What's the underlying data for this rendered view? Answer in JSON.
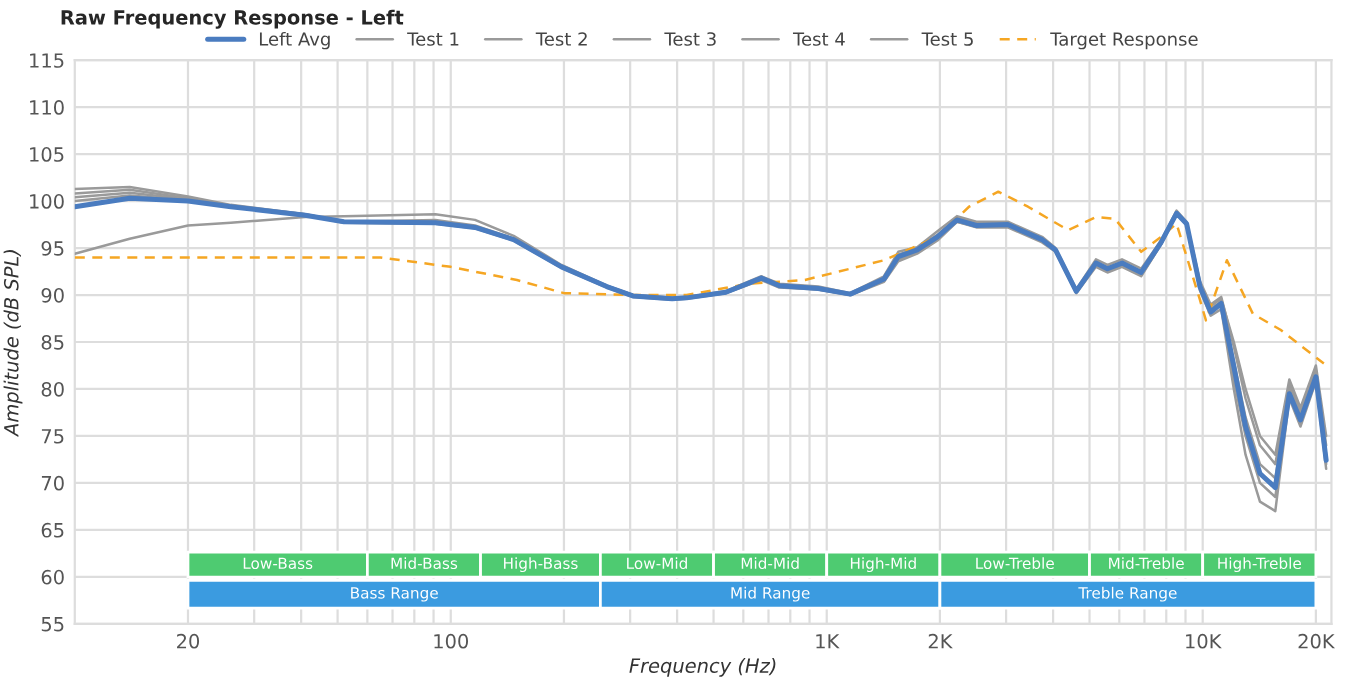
{
  "chart_data": {
    "type": "line",
    "title": "Raw Frequency Response - Left",
    "xlabel": "Frequency (Hz)",
    "ylabel": "Amplitude (dB SPL)",
    "log": "x",
    "grid": true,
    "legend": "top",
    "xlim": [
      10,
      22000
    ],
    "ylim": [
      55,
      115
    ],
    "xticks": [
      {
        "value": 20,
        "label": "20"
      },
      {
        "value": 30,
        "label": null
      },
      {
        "value": 40,
        "label": null
      },
      {
        "value": 50,
        "label": null
      },
      {
        "value": 60,
        "label": null
      },
      {
        "value": 70,
        "label": null
      },
      {
        "value": 80,
        "label": null
      },
      {
        "value": 90,
        "label": null
      },
      {
        "value": 100,
        "label": "100"
      },
      {
        "value": 200,
        "label": null
      },
      {
        "value": 300,
        "label": null
      },
      {
        "value": 400,
        "label": null
      },
      {
        "value": 500,
        "label": null
      },
      {
        "value": 600,
        "label": null
      },
      {
        "value": 700,
        "label": null
      },
      {
        "value": 800,
        "label": null
      },
      {
        "value": 900,
        "label": null
      },
      {
        "value": 1000,
        "label": "1K"
      },
      {
        "value": 2000,
        "label": "2K"
      },
      {
        "value": 3000,
        "label": null
      },
      {
        "value": 4000,
        "label": null
      },
      {
        "value": 5000,
        "label": null
      },
      {
        "value": 6000,
        "label": null
      },
      {
        "value": 7000,
        "label": null
      },
      {
        "value": 8000,
        "label": null
      },
      {
        "value": 9000,
        "label": null
      },
      {
        "value": 10000,
        "label": "10K"
      },
      {
        "value": 20000,
        "label": "20K"
      }
    ],
    "yticks": [
      55,
      60,
      65,
      70,
      75,
      80,
      85,
      90,
      95,
      100,
      105,
      110,
      115
    ],
    "x": [
      10,
      14,
      20,
      26,
      41,
      52,
      91,
      116,
      147,
      197,
      260,
      305,
      388,
      424,
      539,
      670,
      748,
      950,
      1155,
      1420,
      1550,
      1740,
      1970,
      2220,
      2500,
      3030,
      3740,
      4060,
      4610,
      5200,
      5580,
      6100,
      6860,
      7750,
      8520,
      9060,
      9830,
      10500,
      11200,
      12100,
      13000,
      14200,
      15600,
      17000,
      18200,
      20000,
      21300
    ],
    "series": [
      {
        "name": "Test 1",
        "color": "#9a9a9a",
        "values": [
          101.3,
          101.5,
          100.5,
          99.6,
          98.6,
          97.8,
          98.0,
          97.4,
          96.0,
          93.1,
          91.0,
          90.0,
          89.7,
          89.8,
          90.4,
          92.0,
          91.2,
          90.9,
          90.2,
          92.0,
          94.6,
          95.1,
          96.8,
          98.4,
          97.8,
          97.8,
          96.2,
          95.0,
          90.6,
          93.8,
          93.2,
          93.8,
          92.8,
          95.8,
          99.0,
          97.8,
          91.5,
          89.0,
          89.8,
          84.5,
          79.0,
          74.0,
          72.0,
          80.5,
          77.5,
          82.0,
          74.0
        ]
      },
      {
        "name": "Test 2",
        "color": "#9a9a9a",
        "values": [
          100.8,
          101.2,
          100.3,
          99.5,
          98.6,
          97.8,
          97.8,
          97.3,
          96.0,
          93.0,
          90.9,
          89.9,
          89.6,
          89.7,
          90.2,
          91.7,
          90.9,
          90.6,
          90.0,
          91.5,
          93.8,
          94.6,
          96.0,
          97.8,
          97.2,
          97.2,
          95.6,
          94.6,
          90.2,
          93.0,
          92.4,
          93.0,
          92.0,
          95.4,
          98.6,
          97.5,
          90.5,
          87.8,
          88.5,
          80.0,
          73.0,
          68.0,
          67.0,
          79.0,
          76.0,
          80.8,
          71.5
        ]
      },
      {
        "name": "Test 3",
        "color": "#9a9a9a",
        "values": [
          100.4,
          100.9,
          100.2,
          99.5,
          98.5,
          97.8,
          97.7,
          97.2,
          95.9,
          93.0,
          90.9,
          89.9,
          89.6,
          89.7,
          90.3,
          91.9,
          91.1,
          90.8,
          90.1,
          91.8,
          94.3,
          95.0,
          96.4,
          98.2,
          97.6,
          97.6,
          96.0,
          94.9,
          90.5,
          93.5,
          92.9,
          93.5,
          92.5,
          95.6,
          98.8,
          97.7,
          90.8,
          88.0,
          89.0,
          81.0,
          75.0,
          70.0,
          68.5,
          79.2,
          76.5,
          81.5,
          72.0
        ]
      },
      {
        "name": "Test 4",
        "color": "#9a9a9a",
        "values": [
          100.0,
          100.6,
          100.1,
          99.4,
          98.5,
          97.7,
          97.6,
          97.1,
          95.8,
          92.9,
          90.8,
          89.8,
          89.5,
          89.6,
          90.2,
          91.6,
          90.8,
          90.6,
          90.0,
          91.4,
          93.6,
          94.4,
          95.8,
          97.8,
          97.3,
          97.3,
          95.8,
          94.7,
          90.3,
          93.1,
          92.5,
          93.1,
          92.1,
          95.4,
          98.6,
          97.5,
          90.8,
          88.5,
          89.3,
          83.0,
          77.0,
          72.0,
          70.5,
          80.0,
          77.0,
          81.8,
          73.0
        ]
      },
      {
        "name": "Test 5",
        "color": "#9a9a9a",
        "values": [
          94.4,
          96.0,
          97.4,
          97.7,
          98.3,
          98.4,
          98.6,
          98.0,
          96.3,
          93.2,
          91.0,
          90.0,
          89.7,
          89.8,
          90.3,
          91.8,
          91.0,
          90.7,
          90.1,
          91.7,
          94.0,
          94.8,
          96.2,
          98.0,
          97.4,
          97.5,
          95.9,
          94.8,
          90.4,
          93.4,
          92.8,
          93.4,
          92.4,
          95.6,
          98.7,
          97.6,
          91.2,
          88.8,
          89.6,
          85.0,
          80.0,
          75.0,
          73.0,
          81.0,
          78.0,
          82.5,
          75.0
        ]
      },
      {
        "name": "Left Avg",
        "color": "#4a7cc0",
        "values": [
          99.4,
          100.3,
          100.0,
          99.4,
          98.5,
          97.8,
          97.7,
          97.2,
          95.9,
          93.0,
          90.9,
          89.9,
          89.6,
          89.7,
          90.3,
          91.8,
          91.0,
          90.7,
          90.1,
          91.7,
          94.1,
          94.8,
          96.2,
          98.0,
          97.4,
          97.5,
          95.9,
          94.8,
          90.4,
          93.4,
          92.8,
          93.4,
          92.4,
          95.6,
          98.7,
          97.6,
          90.9,
          88.2,
          89.1,
          82.4,
          76.0,
          71.0,
          69.5,
          79.5,
          76.7,
          81.3,
          72.4
        ]
      },
      {
        "name": "Target Response",
        "color": "#f5a623",
        "line_style": "dashed",
        "x": [
          10,
          20,
          50,
          65,
          100,
          150,
          200,
          300,
          424,
          620,
          875,
          1420,
          1970,
          2390,
          2860,
          3430,
          4390,
          5200,
          5850,
          6860,
          7750,
          8520,
          9830,
          10200,
          11600,
          13600,
          16100,
          21000
        ],
        "values": [
          94,
          94,
          94,
          94,
          93.0,
          91.6,
          90.2,
          90,
          90,
          91.2,
          91.6,
          93.7,
          96.2,
          99.4,
          101.0,
          99.4,
          96.9,
          98.3,
          98.1,
          94.6,
          96.2,
          97.6,
          89.5,
          87.3,
          93.7,
          88.0,
          86.3,
          82.7
        ]
      }
    ],
    "bands": [
      {
        "axis": "x",
        "from": 20,
        "to": 60,
        "label": "Low-Bass",
        "color": "#4ecb71"
      },
      {
        "axis": "x",
        "from": 60,
        "to": 120,
        "label": "Mid-Bass",
        "color": "#4ecb71"
      },
      {
        "axis": "x",
        "from": 120,
        "to": 250,
        "label": "High-Bass",
        "color": "#4ecb71"
      },
      {
        "axis": "x",
        "from": 250,
        "to": 500,
        "label": "Low-Mid",
        "color": "#4ecb71"
      },
      {
        "axis": "x",
        "from": 500,
        "to": 1000,
        "label": "Mid-Mid",
        "color": "#4ecb71"
      },
      {
        "axis": "x",
        "from": 1000,
        "to": 2000,
        "label": "High-Mid",
        "color": "#4ecb71"
      },
      {
        "axis": "x",
        "from": 2000,
        "to": 5000,
        "label": "Low-Treble",
        "color": "#4ecb71"
      },
      {
        "axis": "x",
        "from": 5000,
        "to": 10000,
        "label": "Mid-Treble",
        "color": "#4ecb71"
      },
      {
        "axis": "x",
        "from": 10000,
        "to": 20000,
        "label": "High-Treble",
        "color": "#4ecb71"
      },
      {
        "axis": "x",
        "from": 20,
        "to": 250,
        "label": "Bass Range",
        "color": "#3b9be0"
      },
      {
        "axis": "x",
        "from": 250,
        "to": 2000,
        "label": "Mid Range",
        "color": "#3b9be0"
      },
      {
        "axis": "x",
        "from": 2000,
        "to": 20000,
        "label": "Treble Range",
        "color": "#3b9be0"
      }
    ]
  }
}
